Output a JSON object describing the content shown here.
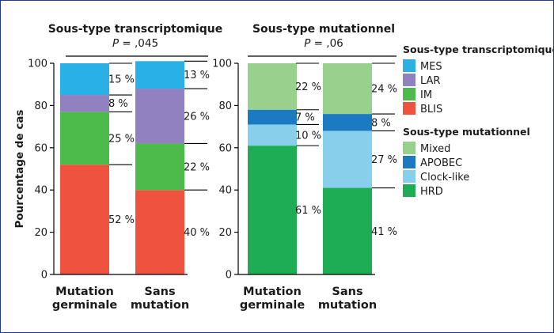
{
  "chart_data": [
    {
      "type": "bar",
      "stacked": true,
      "title": "Sous-type transcriptomique",
      "subtitle": "P = ,045",
      "ylabel": "Pourcentage de cas",
      "ylim": [
        0,
        100
      ],
      "yticks": [
        0,
        20,
        40,
        60,
        80,
        100
      ],
      "categories": [
        "Mutation\ngerminale",
        "Sans\nmutation"
      ],
      "series": [
        {
          "name": "BLIS",
          "color": "#ef5340",
          "values": [
            52,
            40
          ],
          "labels": [
            "52 %",
            "40 %"
          ]
        },
        {
          "name": "IM",
          "color": "#4dbb4b",
          "values": [
            25,
            22
          ],
          "labels": [
            "25 %",
            "22 %"
          ]
        },
        {
          "name": "LAR",
          "color": "#9181c1",
          "values": [
            8,
            26
          ],
          "labels": [
            "8 %",
            "26 %"
          ]
        },
        {
          "name": "MES",
          "color": "#29b1e6",
          "values": [
            15,
            13
          ],
          "labels": [
            "15 %",
            "13 %"
          ]
        }
      ]
    },
    {
      "type": "bar",
      "stacked": true,
      "title": "Sous-type mutationnel",
      "subtitle": "P = ,06",
      "ylim": [
        0,
        100
      ],
      "yticks": [
        0,
        20,
        40,
        60,
        80,
        100
      ],
      "categories": [
        "Mutation\ngerminale",
        "Sans\nmutation"
      ],
      "series": [
        {
          "name": "HRD",
          "color": "#1ead55",
          "values": [
            61,
            41
          ],
          "labels": [
            "61 %",
            "41 %"
          ]
        },
        {
          "name": "Clock-like",
          "color": "#87cfeb",
          "values": [
            10,
            27
          ],
          "labels": [
            "10 %",
            "27 %"
          ]
        },
        {
          "name": "APOBEC",
          "color": "#1b7ac1",
          "values": [
            7,
            8
          ],
          "labels": [
            "7 %",
            "8 %"
          ]
        },
        {
          "name": "Mixed",
          "color": "#98d08e",
          "values": [
            22,
            24
          ],
          "labels": [
            "22 %",
            "24 %"
          ]
        }
      ]
    }
  ],
  "legends": [
    {
      "title": "Sous-type transcriptomique",
      "items": [
        {
          "label": "MES",
          "color": "#29b1e6"
        },
        {
          "label": "LAR",
          "color": "#9181c1"
        },
        {
          "label": "IM",
          "color": "#4dbb4b"
        },
        {
          "label": "BLIS",
          "color": "#ef5340"
        }
      ]
    },
    {
      "title": "Sous-type mutationnel",
      "items": [
        {
          "label": "Mixed",
          "color": "#98d08e"
        },
        {
          "label": "APOBEC",
          "color": "#1b7ac1"
        },
        {
          "label": "Clock-like",
          "color": "#87cfeb"
        },
        {
          "label": "HRD",
          "color": "#1ead55"
        }
      ]
    }
  ]
}
